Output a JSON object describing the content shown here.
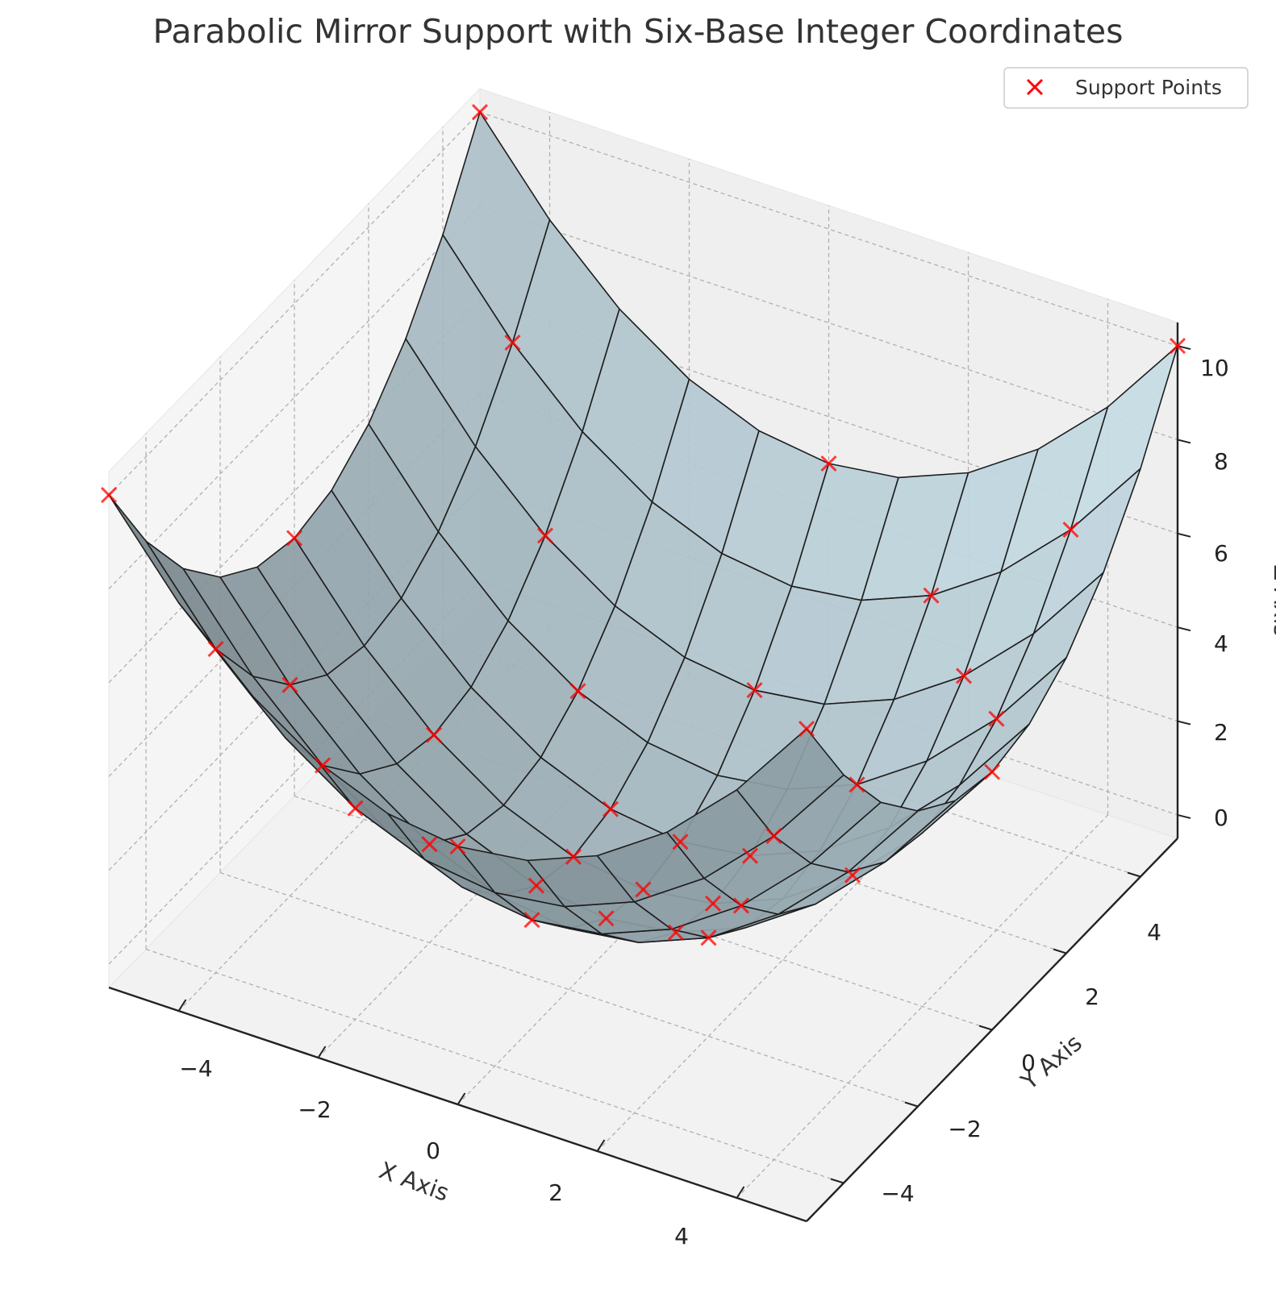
{
  "chart_data": {
    "type": "surface3d",
    "title": "Parabolic Mirror Support with Six-Base Integer Coordinates",
    "xlabel": "X Axis",
    "ylabel": "Y Axis",
    "zlabel": "Z Axis",
    "x_ticks": [
      "−4",
      "−2",
      "0",
      "2",
      "4"
    ],
    "y_ticks": [
      "−4",
      "−2",
      "0",
      "2",
      "4"
    ],
    "z_ticks": [
      "0",
      "2",
      "4",
      "6",
      "8",
      "10"
    ],
    "xlim": [
      -5,
      5
    ],
    "ylim": [
      -5,
      5
    ],
    "zlim": [
      -0.5,
      10.5
    ],
    "grid": true,
    "legend": {
      "position": "top-right",
      "entries": [
        "Support Points"
      ]
    },
    "surface": {
      "function": "z = (x^2 + y^2) / 5",
      "x_range": [
        -5,
        5
      ],
      "y_range": [
        -5,
        5
      ],
      "grid_steps": 10,
      "colormap": [
        "#5f6b70",
        "#cfe6f0"
      ],
      "edge_color": "#1e1e1e"
    },
    "support_points": {
      "name": "Support Points",
      "marker": "x",
      "color": "#ff0000",
      "points": [
        [
          -5,
          5,
          10.0
        ],
        [
          5,
          -5,
          10.0
        ],
        [
          -5,
          -5,
          10.0
        ],
        [
          5,
          5,
          10.0
        ],
        [
          -4,
          4,
          6.4
        ],
        [
          4,
          -4,
          6.4
        ],
        [
          -4,
          -4,
          6.4
        ],
        [
          4,
          4,
          6.4
        ],
        [
          -3,
          3,
          3.6
        ],
        [
          3,
          -3,
          3.6
        ],
        [
          -3,
          -3,
          3.6
        ],
        [
          3,
          3,
          3.6
        ],
        [
          -2,
          2,
          1.6
        ],
        [
          2,
          -2,
          1.6
        ],
        [
          -2,
          -2,
          1.6
        ],
        [
          2,
          2,
          1.6
        ],
        [
          -1,
          1,
          0.4
        ],
        [
          1,
          -1,
          0.4
        ],
        [
          -1,
          -1,
          0.4
        ],
        [
          1,
          1,
          0.4
        ],
        [
          0,
          5,
          5.0
        ],
        [
          0,
          -5,
          5.0
        ],
        [
          5,
          0,
          5.0
        ],
        [
          -5,
          0,
          5.0
        ],
        [
          0,
          3,
          1.8
        ],
        [
          0,
          -3,
          1.8
        ],
        [
          3,
          0,
          1.8
        ],
        [
          -3,
          0,
          1.8
        ],
        [
          0,
          1,
          0.2
        ],
        [
          0,
          -1,
          0.2
        ],
        [
          1,
          0,
          0.2
        ],
        [
          -1,
          0,
          0.2
        ],
        [
          0,
          0,
          0.0
        ],
        [
          2,
          4,
          4.0
        ],
        [
          -2,
          -4,
          4.0
        ],
        [
          4,
          2,
          4.0
        ],
        [
          -4,
          -2,
          4.0
        ]
      ]
    }
  }
}
